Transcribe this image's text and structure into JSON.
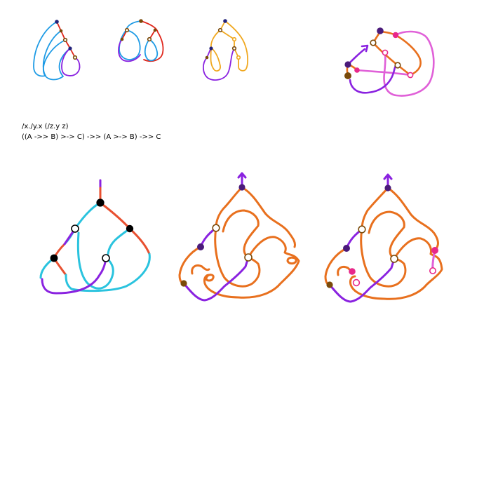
{
  "caption": {
    "term": "/x./y.x (/z.y z)",
    "type": "((A ->> B) >-> C) ->> (A >-> B) ->> C"
  },
  "colors": {
    "blue": "#1e9be5",
    "red": "#e0261b",
    "brown": "#7a4a0a",
    "navy": "#22227a",
    "purple": "#8a22e0",
    "orange": "#f0a820",
    "cyan": "#2ac3de",
    "tomato": "#e85030",
    "black": "#000000",
    "burnt_orange": "#e8701e",
    "dark_purple": "#4a1a7a",
    "pink": "#e8288a",
    "violet_pink": "#e060d8",
    "white": "#ffffff"
  }
}
